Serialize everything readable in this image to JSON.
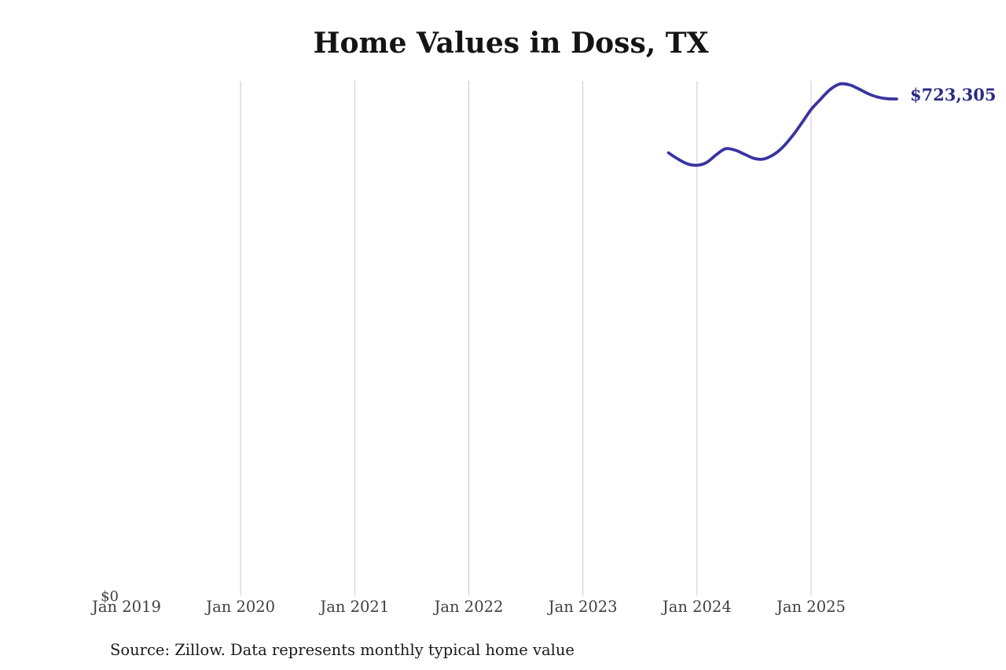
{
  "chart_data": {
    "type": "line",
    "title": "Home Values in Doss, TX",
    "source": "Source: Zillow. Data represents monthly typical home value",
    "xlabel": "",
    "ylabel": "",
    "x_ticks": [
      "Jan 2019",
      "Jan 2020",
      "Jan 2021",
      "Jan 2022",
      "Jan 2023",
      "Jan 2024",
      "Jan 2025"
    ],
    "y_zero_label": "$0",
    "end_value_label": "$723,305",
    "end_value": 723305,
    "ylim": [
      0,
      750000
    ],
    "x_range": [
      "Jan 2019",
      "Oct 2025"
    ],
    "grid": "vertical-gridlines-only",
    "legend": "none",
    "series": [
      {
        "name": "Typical home value",
        "x": [
          "Oct 2023",
          "Nov 2023",
          "Dec 2023",
          "Jan 2024",
          "Feb 2024",
          "Mar 2024",
          "Apr 2024",
          "May 2024",
          "Jun 2024",
          "Jul 2024",
          "Aug 2024",
          "Sep 2024",
          "Oct 2024",
          "Nov 2024",
          "Dec 2024",
          "Jan 2025",
          "Feb 2025",
          "Mar 2025",
          "Apr 2025",
          "May 2025",
          "Jun 2025",
          "Jul 2025",
          "Aug 2025",
          "Sep 2025",
          "Oct 2025"
        ],
        "values": [
          645000,
          636000,
          629000,
          627000,
          631000,
          642000,
          651000,
          649000,
          643000,
          637000,
          636000,
          642000,
          653000,
          669000,
          688000,
          708000,
          723000,
          737000,
          745000,
          744000,
          738000,
          731000,
          726000,
          723600,
          723305
        ]
      }
    ],
    "colors": {
      "line": "#3a34a0",
      "value_label": "#2b2b85",
      "gridline": "#c9c9c9",
      "tick_label": "#3f3f3f",
      "title": "#141414",
      "source": "#1a1a1a"
    }
  }
}
